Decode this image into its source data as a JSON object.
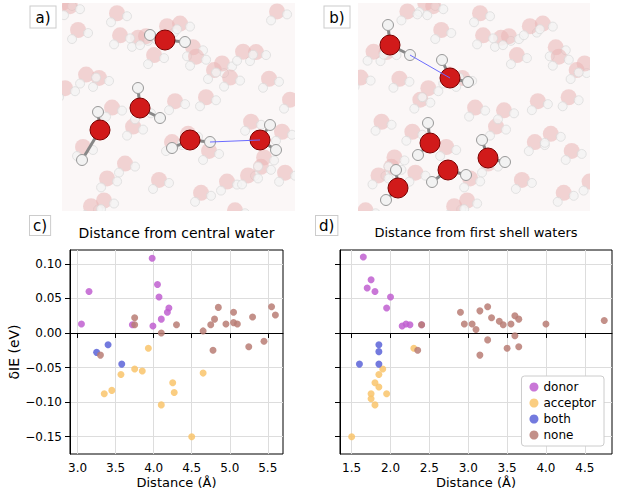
{
  "images": [
    {
      "label": "a)"
    },
    {
      "label": "b)"
    }
  ],
  "chart_data": [
    {
      "type": "scatter",
      "label": "c)",
      "title": "Distance from central water",
      "x_label": "Distance (Å)",
      "y_label": "δIE (eV)",
      "xlim": [
        2.9,
        5.7
      ],
      "xticks": [
        {
          "value": 3,
          "label": "3.0"
        },
        3.5,
        {
          "value": 4,
          "label": "4.0"
        },
        4.5,
        {
          "value": 5,
          "label": "5.0"
        },
        5.5
      ],
      "ylim": [
        -0.175,
        0.12
      ],
      "yticks": [
        {
          "value": -0.15,
          "label": "−0.15"
        },
        {
          "value": -0.1,
          "label": "−0.10"
        },
        {
          "value": -0.05,
          "label": "−0.05"
        },
        {
          "value": 0,
          "label": "0.00"
        },
        0.05,
        {
          "value": 0.1,
          "label": "0.10"
        }
      ],
      "grid": true,
      "series": [
        {
          "name": "donor",
          "color": "#bf5fd0",
          "x": [
            3.15,
            3.05,
            3.98,
            4.05,
            4.07,
            4.2,
            4.18,
            4.1,
            3.99,
            3.72
          ],
          "values": [
            0.06,
            0.013,
            0.108,
            0.07,
            0.052,
            0.036,
            0.03,
            0.02,
            0.01,
            0.012
          ]
        },
        {
          "name": "acceptor",
          "color": "#f9c46b",
          "x": [
            3.35,
            3.45,
            3.57,
            3.75,
            3.85,
            3.93,
            4.1,
            4.25,
            4.27,
            4.5,
            4.65
          ],
          "values": [
            -0.088,
            -0.083,
            -0.06,
            -0.052,
            -0.055,
            -0.022,
            -0.104,
            -0.072,
            -0.086,
            -0.15,
            -0.058
          ]
        },
        {
          "name": "both",
          "color": "#5b63d8",
          "x": [
            3.25,
            3.4,
            3.58
          ],
          "values": [
            -0.028,
            -0.017,
            -0.045
          ]
        },
        {
          "name": "none",
          "color": "#b87c74",
          "x": [
            3.3,
            3.75,
            3.75,
            4.1,
            4.3,
            4.65,
            4.75,
            4.8,
            4.78,
            4.85,
            4.95,
            5.05,
            5.05,
            5.1,
            5.25,
            5.3,
            5.45,
            5.55,
            5.6
          ],
          "values": [
            -0.032,
            0.022,
            0.012,
            0.0,
            0.012,
            0.003,
            0.012,
            0.02,
            -0.025,
            0.037,
            0.013,
            0.015,
            0.03,
            0.013,
            -0.02,
            0.023,
            -0.012,
            0.038,
            0.026
          ]
        }
      ]
    },
    {
      "type": "scatter",
      "label": "d)",
      "title": "Distance from first shell waters",
      "x_label": "Distance (Å)",
      "xlim": [
        1.35,
        4.85
      ],
      "xticks": [
        1.5,
        {
          "value": 2,
          "label": "2.0"
        },
        2.5,
        {
          "value": 3,
          "label": "3.0"
        },
        3.5,
        {
          "value": 4,
          "label": "4.0"
        },
        4.5
      ],
      "ylim": [
        -0.175,
        0.12
      ],
      "yticks": [
        {
          "value": -0.15,
          "label": "−0.15"
        },
        {
          "value": -0.1,
          "label": "−0.10"
        },
        {
          "value": -0.05,
          "label": "−0.05"
        },
        {
          "value": 0,
          "label": "0.00"
        },
        0.05,
        {
          "value": 0.1,
          "label": "0.10"
        }
      ],
      "grid": true,
      "tick_labels": "x",
      "legend": "lower right",
      "series": [
        {
          "name": "donor",
          "color": "#bf5fd0",
          "x": [
            1.65,
            1.75,
            1.8,
            1.7,
            2.0,
            1.95,
            2.2,
            2.25,
            2.15,
            2.4
          ],
          "values": [
            0.11,
            0.077,
            0.06,
            0.065,
            0.052,
            0.036,
            0.013,
            0.012,
            0.01,
            0.012
          ]
        },
        {
          "name": "acceptor",
          "color": "#f9c46b",
          "x": [
            1.5,
            1.75,
            1.8,
            1.75,
            1.85,
            1.9,
            1.85,
            1.8,
            1.95,
            2.3
          ],
          "values": [
            -0.15,
            -0.088,
            -0.104,
            -0.095,
            -0.06,
            -0.052,
            -0.078,
            -0.072,
            -0.088,
            -0.022
          ]
        },
        {
          "name": "both",
          "color": "#5b63d8",
          "x": [
            1.85,
            1.85,
            1.6,
            1.85
          ],
          "values": [
            -0.017,
            -0.027,
            -0.045,
            -0.045
          ]
        },
        {
          "name": "none",
          "color": "#b87c74",
          "x": [
            2.35,
            2.4,
            2.9,
            3.05,
            3.1,
            3.15,
            3.25,
            3.3,
            3.4,
            3.45,
            3.55,
            3.6,
            3.6,
            3.65,
            3.15,
            3.25,
            3.5,
            3.65,
            4.0,
            4.75,
            2.95
          ],
          "values": [
            -0.025,
            0.012,
            0.03,
            0.013,
            0.005,
            0.032,
            0.038,
            0.022,
            0.017,
            0.012,
            0.013,
            0.025,
            -0.004,
            0.02,
            -0.032,
            -0.01,
            -0.022,
            -0.02,
            0.013,
            0.018,
            0.013
          ]
        }
      ]
    }
  ]
}
